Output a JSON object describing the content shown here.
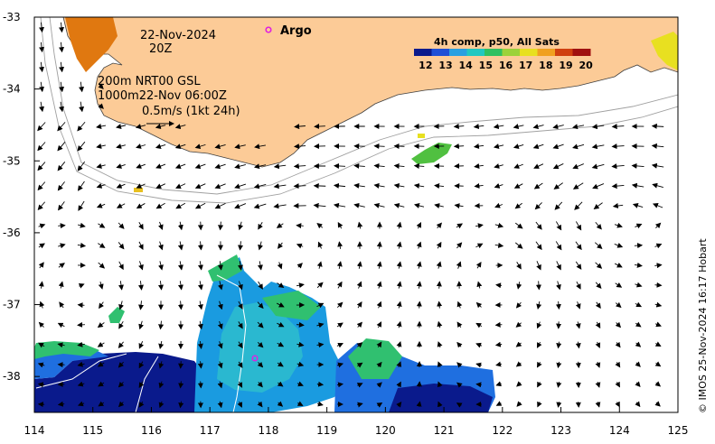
{
  "date": "22-Nov-2024",
  "time": "20Z",
  "depth_info": "200m  NRT00 GSL",
  "depth_info2": "1000m22-Nov 06:00Z",
  "scale_label": "0.5m/s (1kt 24h)",
  "argo_label": "Argo",
  "colorbar": {
    "title": "4h comp, p50, All Sats",
    "labels": [
      "12",
      "13",
      "14",
      "15",
      "16",
      "17",
      "18",
      "19",
      "20"
    ],
    "colors": [
      "#0a1a8c",
      "#1f4fd6",
      "#2aa0e0",
      "#22c8c0",
      "#30c060",
      "#9bd23a",
      "#e8e020",
      "#f0a020",
      "#d04010",
      "#a01010"
    ]
  },
  "credit": "© IMOS 25-Nov-2024 16:17 Hobart",
  "colors": {
    "land": "#fccb97",
    "coast": "#404040",
    "bathy": "#a0a0a0"
  },
  "chart_data": {
    "type": "map",
    "x_ticks": [
      "114",
      "115",
      "116",
      "117",
      "118",
      "119",
      "120",
      "121",
      "122",
      "123",
      "124",
      "125"
    ],
    "y_ticks": [
      "-33",
      "-34",
      "-35",
      "-36",
      "-37",
      "-38"
    ],
    "xlim": [
      114,
      125
    ],
    "ylim": [
      -38.5,
      -33
    ]
  }
}
